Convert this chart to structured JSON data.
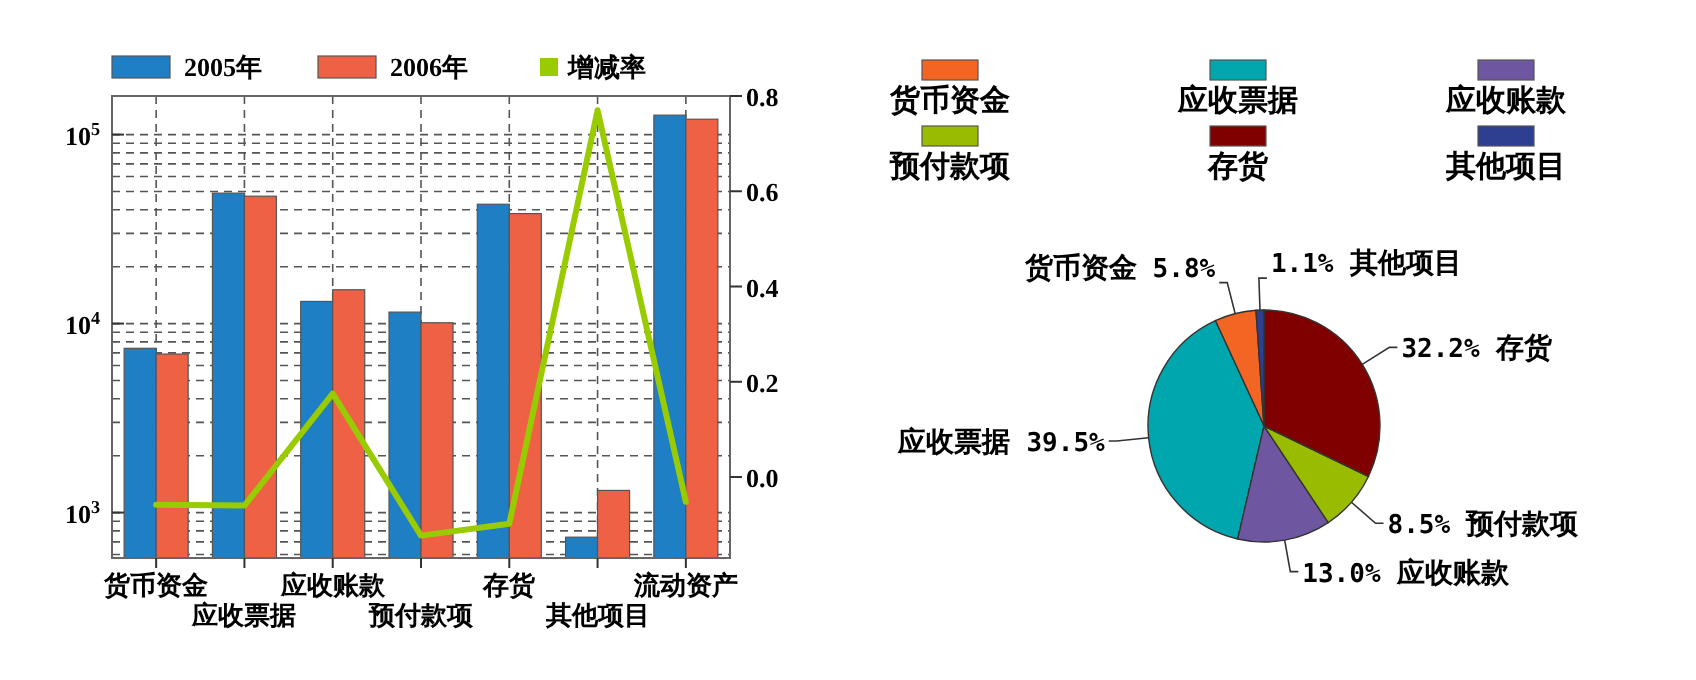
{
  "chart_data": [
    {
      "type": "bar",
      "categories": [
        "货币资金",
        "应收票据",
        "应收账款",
        "预付款项",
        "存货",
        "其他项目",
        "流动资产"
      ],
      "series": [
        {
          "name": "2005年",
          "color": "#1f7fc4",
          "values": [
            7400,
            49000,
            13100,
            11500,
            42800,
            741,
            126700
          ]
        },
        {
          "name": "2006年",
          "color": "#ee6144",
          "values": [
            6900,
            47200,
            15100,
            10100,
            38200,
            1310,
            120600
          ]
        },
        {
          "name": "增减率",
          "type": "line",
          "axis": "y2",
          "color": "#99cc00",
          "values": [
            -0.058,
            -0.06,
            0.175,
            -0.123,
            -0.098,
            0.77,
            -0.052
          ]
        }
      ],
      "log": "y",
      "ylim": [
        575,
        160000
      ],
      "yticks": [
        {
          "value": 1000,
          "label": "10$^{3}$"
        },
        {
          "value": 10000,
          "label": "10$^{4}$"
        },
        {
          "value": 100000,
          "label": "10$^{5}$"
        }
      ],
      "y2lim": [
        -0.17,
        0.8
      ],
      "y2ticks": [
        {
          "value": 0,
          "label": "0.0"
        },
        {
          "value": 0.2,
          "label": "0.2"
        },
        {
          "value": 0.4,
          "label": "0.4"
        },
        {
          "value": 0.6,
          "label": "0.6"
        },
        {
          "value": 0.8,
          "label": "0.8"
        }
      ],
      "grid": true,
      "legend": "top"
    },
    {
      "type": "pie",
      "categories": [
        "货币资金",
        "应收票据",
        "应收账款",
        "预付款项",
        "存货",
        "其他项目"
      ],
      "values": [
        5.8,
        39.5,
        13.0,
        8.5,
        32.2,
        1.1
      ],
      "colors": [
        "#f26522",
        "#00a6ad",
        "#6f56a0",
        "#99bb00",
        "#800000",
        "#2e3e91"
      ],
      "value_labels": [
        "5.8%",
        "39.5%",
        "13.0%",
        "8.5%",
        "32.2%",
        "1.1%"
      ],
      "legend": "top"
    }
  ]
}
